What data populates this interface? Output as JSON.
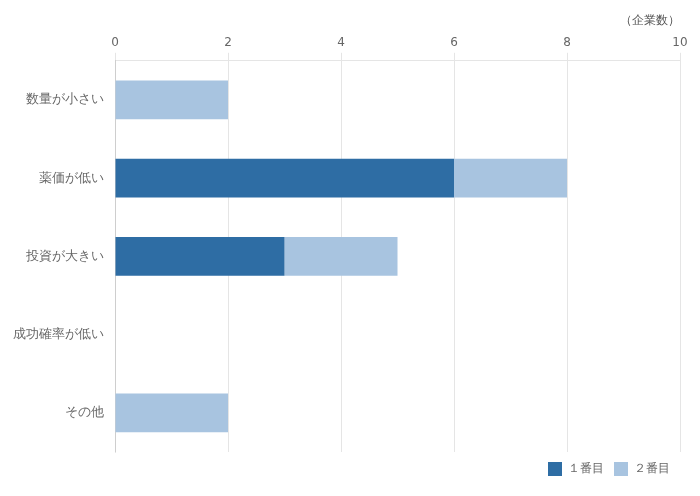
{
  "chart_data": {
    "type": "bar",
    "orientation": "horizontal",
    "stacked": true,
    "categories": [
      "数量が小さい",
      "薬価が低い",
      "投資が大きい",
      "成功確率が低い",
      "その他"
    ],
    "series": [
      {
        "name": "１番目",
        "color": "#2E6DA4",
        "values": [
          0,
          6,
          3,
          0,
          0
        ]
      },
      {
        "name": "２番目",
        "color": "#A8C4E0",
        "values": [
          2,
          2,
          2,
          0,
          2
        ]
      }
    ],
    "xlabel": "（企業数）",
    "xlim": [
      0,
      10
    ],
    "xticks": [
      0,
      2,
      4,
      6,
      8,
      10
    ],
    "grid": true,
    "legend": "lower right"
  }
}
